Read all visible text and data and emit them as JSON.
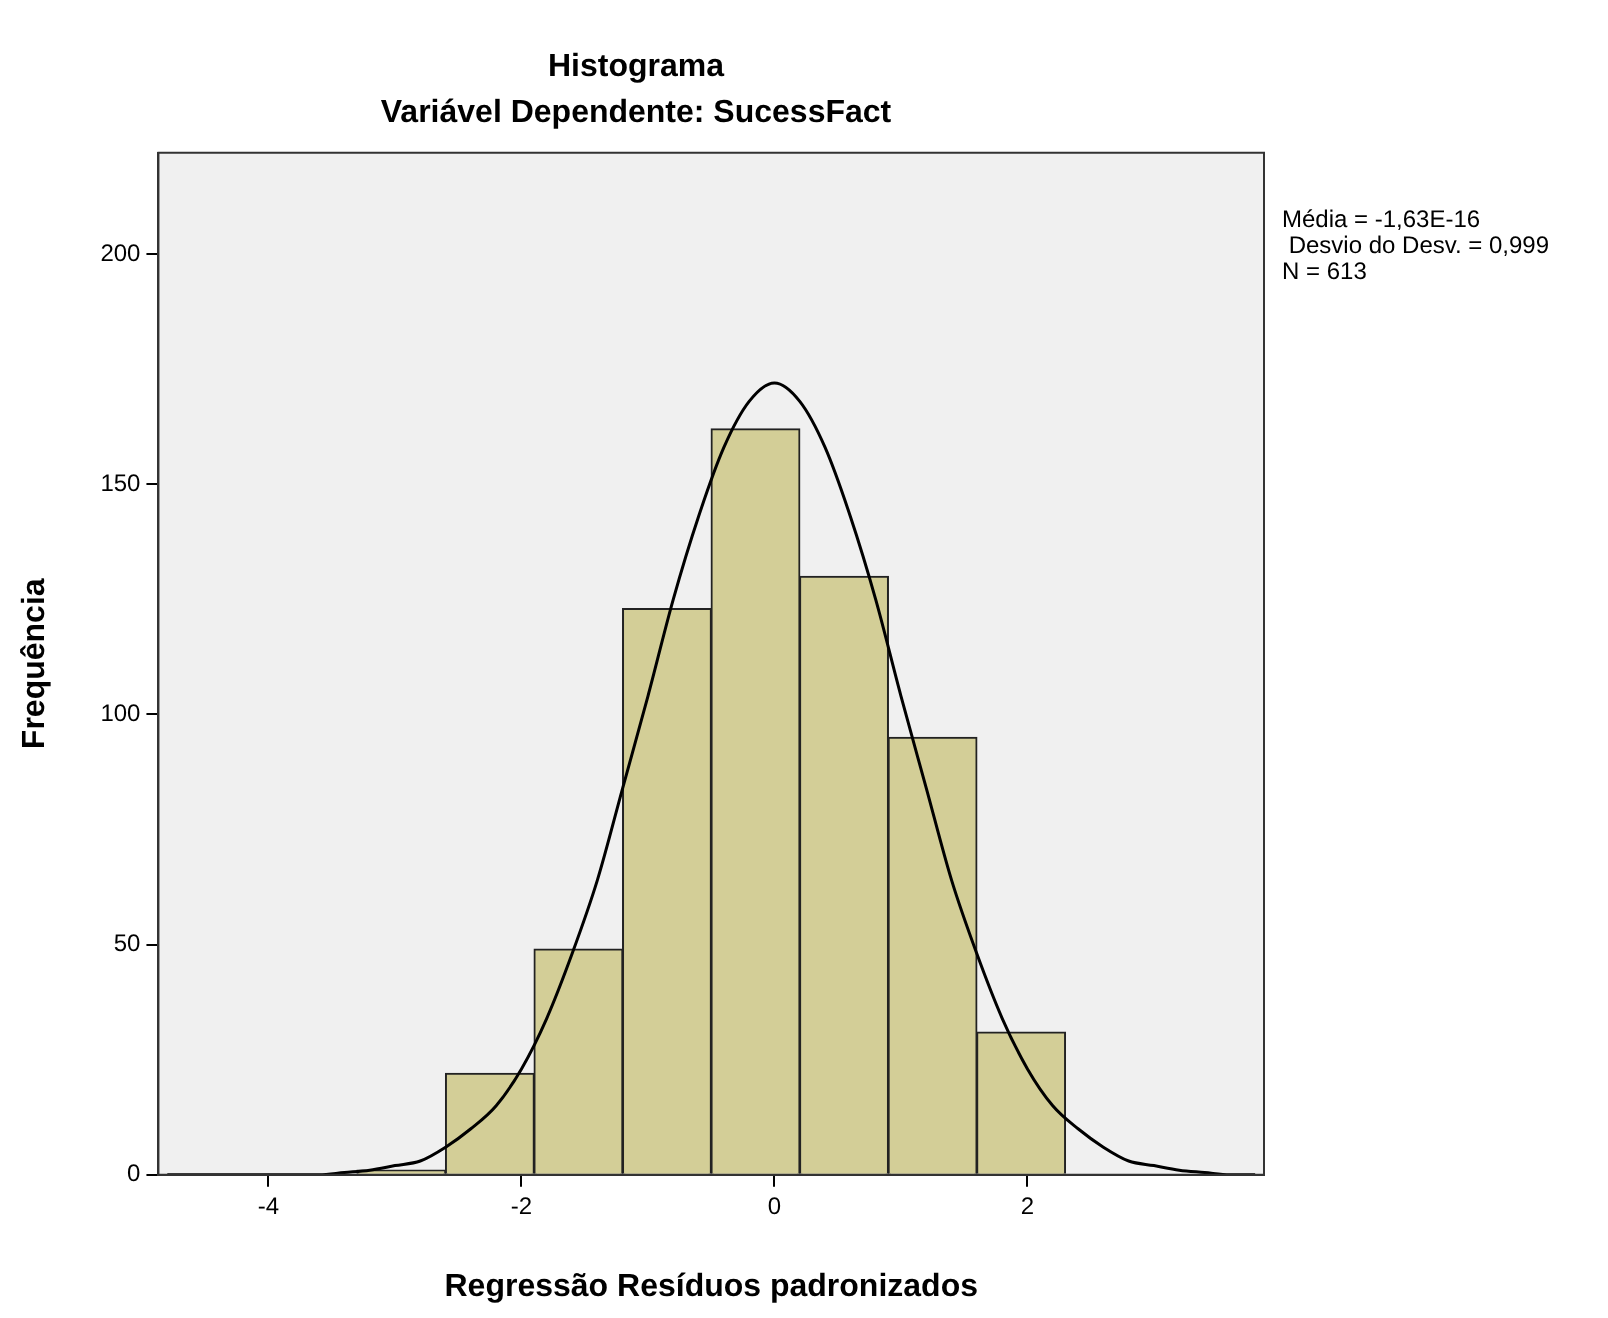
{
  "chart_data": {
    "type": "histogram",
    "title": "Histograma",
    "subtitle": "Variável Dependente: SucessFact",
    "xlabel": "Regressão Resíduos padronizados",
    "ylabel": "Frequência",
    "bins": [
      -3.3,
      -2.6,
      -1.9,
      -1.2,
      -0.5,
      0.2,
      0.9,
      1.6,
      2.3
    ],
    "values": [
      1,
      22,
      49,
      123,
      162,
      130,
      95,
      31
    ],
    "color": "#d3ce97",
    "series": [
      {
        "type": "line",
        "color": "#000000",
        "x": [
          -4.8,
          -4.4,
          -4.0,
          -3.8,
          -3.6,
          -3.4,
          -3.2,
          -3.0,
          -2.8,
          -2.6,
          -2.4,
          -2.2,
          -2.0,
          -1.8,
          -1.6,
          -1.4,
          -1.2,
          -1.0,
          -0.8,
          -0.6,
          -0.4,
          -0.2,
          0,
          0.2,
          0.4,
          0.6,
          0.8,
          1.0,
          1.2,
          1.4,
          1.6,
          1.8,
          2.0,
          2.2,
          2.4,
          2.6,
          2.8,
          3.0,
          3.2,
          3.4,
          3.6,
          3.8
        ],
        "values": [
          0,
          0,
          0,
          0,
          0,
          0.5,
          1,
          2,
          3,
          6,
          10,
          15,
          23,
          34,
          48,
          64,
          84,
          104,
          125,
          143,
          158,
          168,
          172,
          168,
          158,
          143,
          125,
          104,
          84,
          64,
          48,
          34,
          23,
          15,
          10,
          6,
          3,
          2,
          1,
          0.5,
          0,
          0
        ]
      }
    ],
    "xlim": [
      -4.87,
      3.87
    ],
    "xticks": [
      -4,
      -2,
      0,
      2
    ],
    "ylim": [
      0,
      222
    ],
    "yticks": [
      0,
      50,
      100,
      150,
      200
    ],
    "annotations": [
      "Média = -1,63E-16",
      " Desvio do Desv. = 0,999",
      "N = 613"
    ],
    "grid": false,
    "legend": false,
    "marker": "none",
    "line_style": "solid"
  }
}
